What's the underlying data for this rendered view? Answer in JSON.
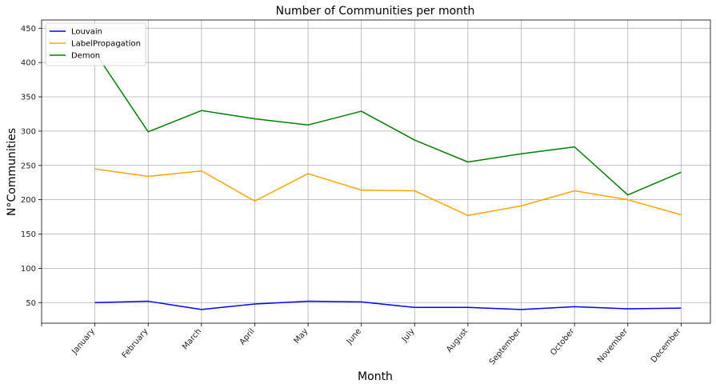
{
  "chart_data": {
    "type": "line",
    "title": "Number of Communities per month",
    "xlabel": "Month",
    "ylabel": "N°Communities",
    "categories": [
      "January",
      "February",
      "March",
      "April",
      "May",
      "June",
      "July",
      "August",
      "September",
      "October",
      "November",
      "December"
    ],
    "ylim": [
      20,
      462
    ],
    "yticks": [
      50,
      100,
      150,
      200,
      250,
      300,
      350,
      400,
      450
    ],
    "grid": true,
    "legend_position": "top-left",
    "series": [
      {
        "name": "Louvain",
        "color": "#0000ff",
        "values": [
          50,
          52,
          40,
          48,
          52,
          51,
          43,
          43,
          40,
          44,
          41,
          42
        ]
      },
      {
        "name": "LabelPropagation",
        "color": "#ffa500",
        "values": [
          245,
          234,
          242,
          198,
          238,
          214,
          213,
          177,
          191,
          213,
          200,
          178
        ]
      },
      {
        "name": "Demon",
        "color": "#008000",
        "values": [
          415,
          299,
          330,
          318,
          309,
          329,
          287,
          255,
          267,
          277,
          207,
          240
        ]
      }
    ]
  }
}
